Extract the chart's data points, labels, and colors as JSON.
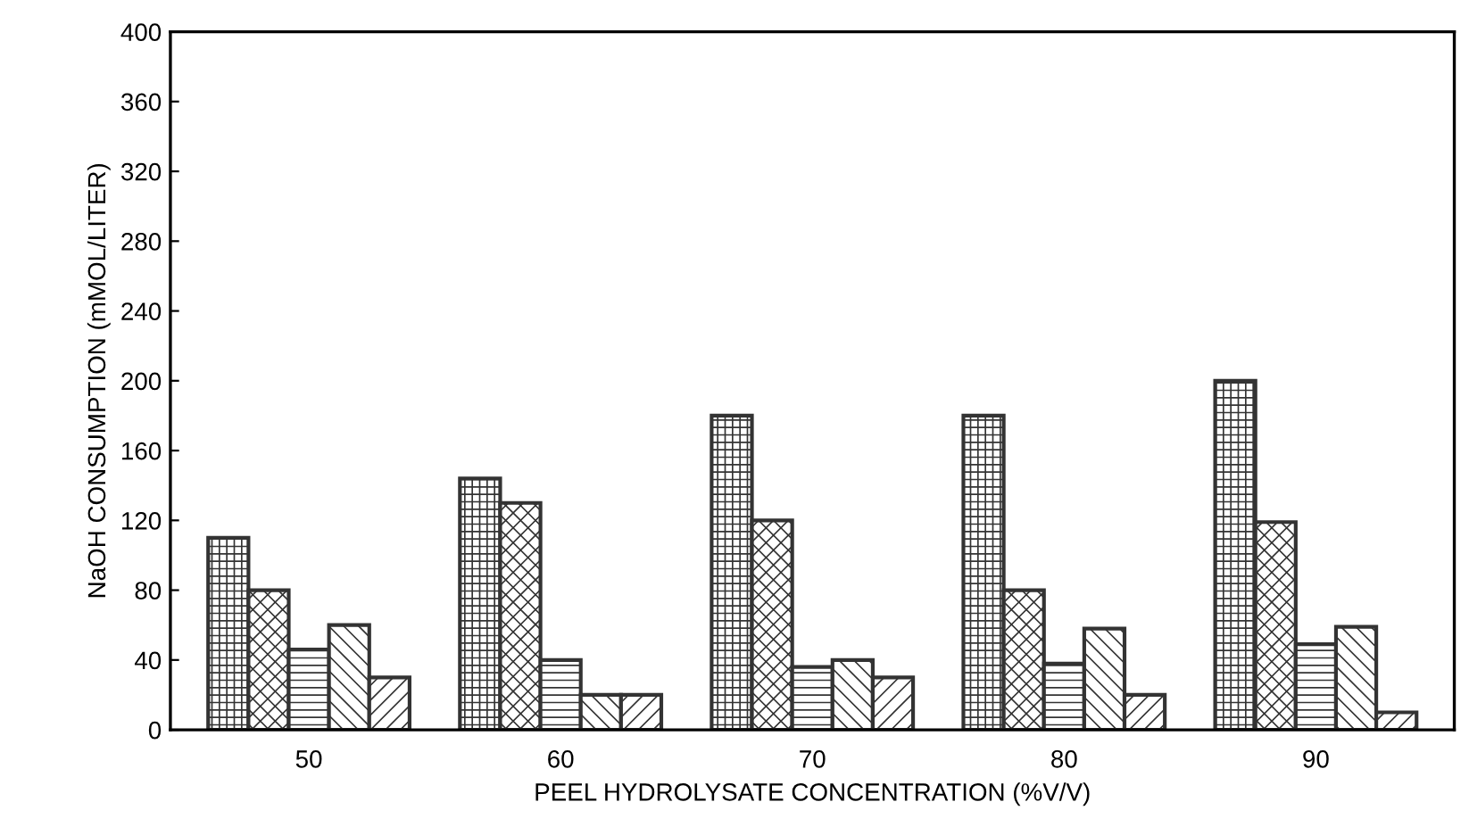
{
  "chart_data": {
    "type": "bar",
    "xlabel": "PEEL HYDROLYSATE CONCENTRATION (%V/V)",
    "ylabel": "NaOH CONSUMPTION (mMOL/LITER)",
    "categories": [
      "50",
      "60",
      "70",
      "80",
      "90"
    ],
    "series": [
      {
        "color": "#333333",
        "values": [
          110,
          144,
          180,
          180,
          200
        ]
      },
      {
        "color": "#333333",
        "values": [
          80,
          130,
          120,
          80,
          119
        ]
      },
      {
        "color": "#333333",
        "values": [
          46,
          40,
          36,
          38,
          49
        ]
      },
      {
        "color": "#333333",
        "values": [
          60,
          20,
          40,
          58,
          59
        ]
      },
      {
        "color": "#333333",
        "values": [
          30,
          20,
          30,
          20,
          10
        ]
      }
    ],
    "ylim": [
      0,
      400
    ],
    "yticks": [
      0,
      40,
      80,
      120,
      160,
      200,
      240,
      280,
      320,
      360,
      400
    ],
    "grid": false,
    "legend": false
  }
}
